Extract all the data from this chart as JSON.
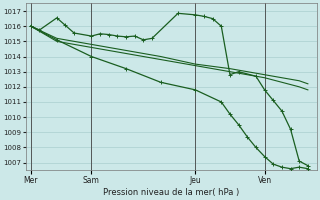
{
  "background_color": "#cce8e8",
  "grid_color": "#aacfcf",
  "line_color": "#1a5e20",
  "xlabel": "Pression niveau de la mer( hPa )",
  "ylim": [
    1006.5,
    1017.5
  ],
  "yticks": [
    1007,
    1008,
    1009,
    1010,
    1011,
    1012,
    1013,
    1014,
    1015,
    1016,
    1017
  ],
  "day_labels": [
    "Mer",
    "Sam",
    "Jeu",
    "Ven"
  ],
  "day_positions": [
    0,
    3.5,
    9.5,
    13.5
  ],
  "xlim": [
    -0.3,
    16.5
  ],
  "line1_wavy": {
    "x": [
      0,
      0.5,
      1.5,
      2.0,
      2.5,
      3.5,
      4.0,
      4.5,
      5.0,
      5.5,
      6.0,
      6.5,
      7.0,
      8.5,
      9.5,
      10.0,
      10.5,
      11.0,
      11.5,
      12.0,
      13.0,
      13.5,
      14.0,
      14.5,
      15.0,
      15.5,
      16.0
    ],
    "y": [
      1016.0,
      1015.75,
      1016.55,
      1016.05,
      1015.55,
      1015.35,
      1015.5,
      1015.45,
      1015.35,
      1015.3,
      1015.35,
      1015.1,
      1015.2,
      1016.85,
      1016.75,
      1016.65,
      1016.5,
      1016.0,
      1012.8,
      1013.0,
      1012.7,
      1011.8,
      1011.1,
      1010.4,
      1009.2,
      1007.1,
      1006.8
    ]
  },
  "line2_smooth1": {
    "x": [
      0,
      1.5,
      3.5,
      5.5,
      7.5,
      9.5,
      11.5,
      13.5,
      15.5,
      16.0
    ],
    "y": [
      1016.0,
      1015.2,
      1014.8,
      1014.4,
      1014.0,
      1013.5,
      1013.2,
      1012.8,
      1012.4,
      1012.2
    ]
  },
  "line3_smooth2": {
    "x": [
      0,
      1.5,
      3.5,
      5.5,
      7.5,
      9.5,
      11.5,
      13.5,
      15.5,
      16.0
    ],
    "y": [
      1016.0,
      1015.0,
      1014.6,
      1014.2,
      1013.8,
      1013.4,
      1013.0,
      1012.6,
      1012.0,
      1011.8
    ]
  },
  "line4_steep": {
    "x": [
      0,
      1.5,
      3.5,
      5.5,
      7.5,
      9.5,
      11.0,
      11.5,
      12.0,
      12.5,
      13.0,
      13.5,
      14.0,
      14.5,
      15.0,
      15.5,
      16.0
    ],
    "y": [
      1016.0,
      1015.1,
      1014.0,
      1013.2,
      1012.3,
      1011.8,
      1011.0,
      1010.2,
      1009.5,
      1008.7,
      1008.0,
      1007.4,
      1006.9,
      1006.7,
      1006.6,
      1006.7,
      1006.6
    ]
  }
}
